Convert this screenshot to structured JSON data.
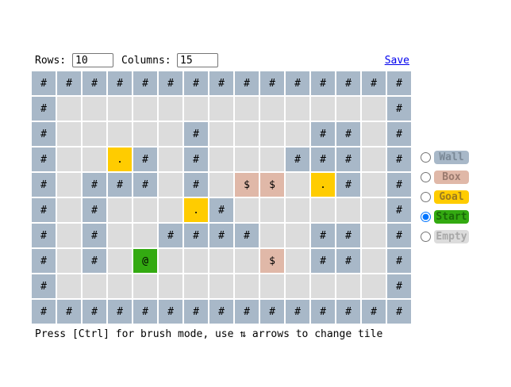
{
  "toolbar": {
    "rows_label": "Rows:",
    "rows_value": "10",
    "cols_label": "Columns:",
    "cols_value": "15",
    "save_label": "Save"
  },
  "tile_types": {
    "wall": {
      "symbol": "#",
      "color": "#a8b8c8"
    },
    "empty": {
      "symbol": "",
      "color": "#dcdcdc"
    },
    "goal": {
      "symbol": ".",
      "color": "#ffcc00"
    },
    "box": {
      "symbol": "$",
      "color": "#e0b8a8"
    },
    "start": {
      "symbol": "@",
      "color": "#33aa11"
    }
  },
  "grid": [
    "###############",
    "#             #",
    "#     #    ## #",
    "#  .# #   ### #",
    "# ### # $$ .# #",
    "# #   .#      #",
    "# #  ####  ## #",
    "# # @    $ ## #",
    "#             #",
    "###############"
  ],
  "palette": [
    {
      "label": "Wall",
      "type": "wall",
      "selected": false,
      "text_color": "#7a8896"
    },
    {
      "label": "Box",
      "type": "box",
      "selected": false,
      "text_color": "#9a7a6e"
    },
    {
      "label": "Goal",
      "type": "goal",
      "selected": false,
      "text_color": "#9a7a20"
    },
    {
      "label": "Start",
      "type": "start",
      "selected": true,
      "text_color": "#1a6a08"
    },
    {
      "label": "Empty",
      "type": "empty",
      "selected": false,
      "text_color": "#a8a8a8"
    }
  ],
  "hint": "Press [Ctrl] for brush mode, use ⇅ arrows to change tile"
}
